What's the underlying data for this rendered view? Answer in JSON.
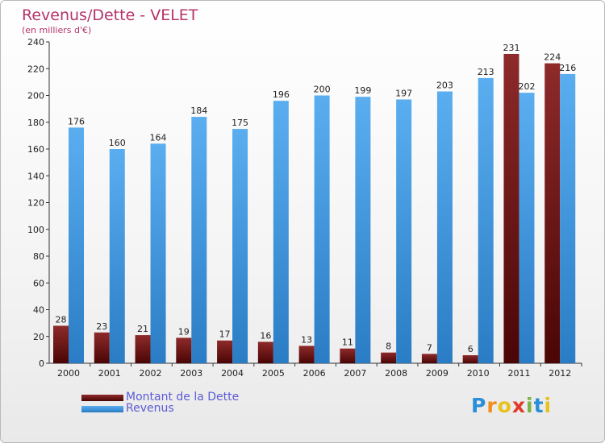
{
  "colors": {
    "debt": "#6b1010",
    "revenue": "#3d95d8",
    "title": "#b5336a",
    "legend_text": "#5b5bd6"
  },
  "chart_data": {
    "type": "bar",
    "title": "Revenus/Dette - VELET",
    "subtitle": "(en milliers d'€)",
    "categories": [
      "2000",
      "2001",
      "2002",
      "2003",
      "2004",
      "2005",
      "2006",
      "2007",
      "2008",
      "2009",
      "2010",
      "2011",
      "2012"
    ],
    "series": [
      {
        "name": "Montant de la Dette",
        "values": [
          28,
          23,
          21,
          19,
          17,
          16,
          13,
          11,
          8,
          7,
          6,
          231,
          224
        ]
      },
      {
        "name": "Revenus",
        "values": [
          176,
          160,
          164,
          184,
          175,
          196,
          200,
          199,
          197,
          203,
          213,
          202,
          216
        ]
      }
    ],
    "ylim": [
      0,
      240
    ],
    "yticks": [
      0,
      20,
      40,
      60,
      80,
      100,
      120,
      140,
      160,
      180,
      200,
      220,
      240
    ],
    "grid": false,
    "legend_position": "bottom-left"
  },
  "logo": {
    "letters": [
      "P",
      "r",
      "o",
      "x",
      "i",
      "t",
      "i"
    ],
    "colors": [
      "#2a8fd6",
      "#f28c1e",
      "#e8c11c",
      "#e23a2a",
      "#7ab342",
      "#2a8fd6",
      "#e8c11c"
    ]
  }
}
